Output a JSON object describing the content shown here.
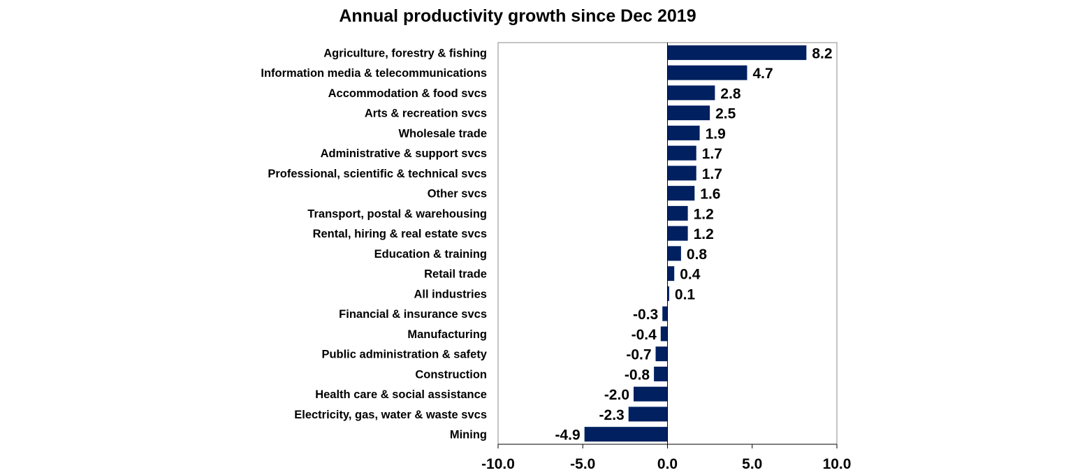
{
  "chart_data": {
    "type": "bar",
    "orientation": "horizontal",
    "title": "Annual productivity growth since Dec 2019",
    "categories": [
      "Agriculture, forestry & fishing",
      "Information media & telecommunications",
      "Accommodation & food svcs",
      "Arts & recreation svcs",
      "Wholesale trade",
      "Administrative & support svcs",
      "Professional, scientific & technical svcs",
      "Other svcs",
      "Transport, postal & warehousing",
      "Rental, hiring & real estate svcs",
      "Education & training",
      "Retail trade",
      "All industries",
      "Financial & insurance svcs",
      "Manufacturing",
      "Public administration & safety",
      "Construction",
      "Health care & social assistance",
      "Electricity, gas, water & waste svcs",
      "Mining"
    ],
    "values": [
      8.2,
      4.7,
      2.8,
      2.5,
      1.9,
      1.7,
      1.7,
      1.6,
      1.2,
      1.2,
      0.8,
      0.4,
      0.1,
      -0.3,
      -0.4,
      -0.7,
      -0.8,
      -2.0,
      -2.3,
      -4.9
    ],
    "data_labels": [
      "8.2",
      "4.7",
      "2.8",
      "2.5",
      "1.9",
      "1.7",
      "1.7",
      "1.6",
      "1.2",
      "1.2",
      "0.8",
      "0.4",
      "0.1",
      "-0.3",
      "-0.4",
      "-0.7",
      "-0.8",
      "-2.0",
      "-2.3",
      "-4.9"
    ],
    "xlim": [
      -10,
      10
    ],
    "x_ticks": [
      -10,
      -5,
      0,
      5,
      10
    ],
    "x_tick_labels": [
      "-10.0",
      "-5.0",
      "0.0",
      "5.0",
      "10.0"
    ],
    "xlabel": "",
    "ylabel": "",
    "grid": false,
    "bar_color": "#002060"
  }
}
